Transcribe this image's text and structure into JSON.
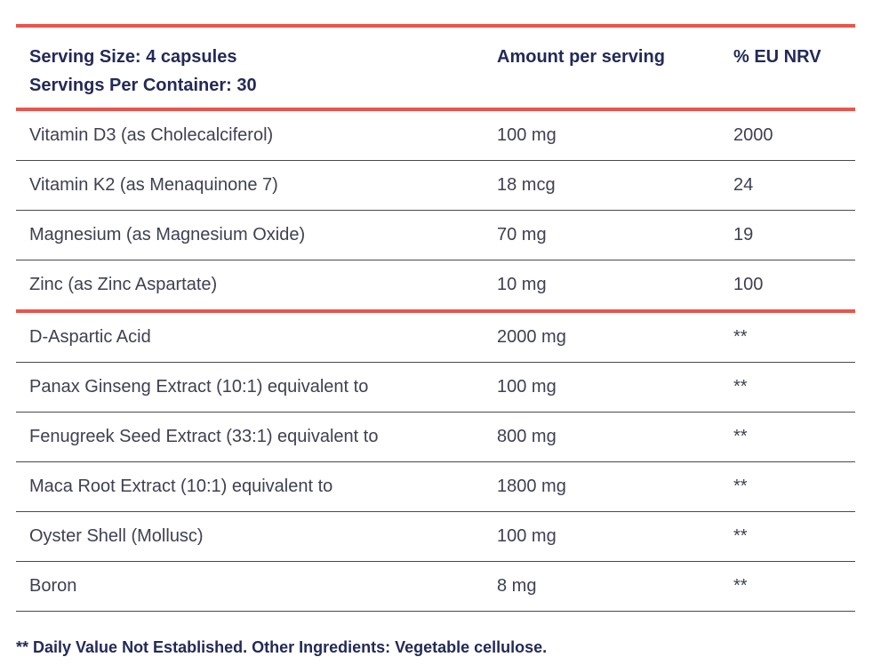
{
  "header": {
    "serving_size": "Serving Size: 4 capsules",
    "servings_per_container": "Servings Per Container: 30",
    "amount_label": "Amount per serving",
    "nrv_label": "% EU NRV"
  },
  "vitamins": [
    {
      "name": "Vitamin D3 (as Cholecalciferol)",
      "amount": "100 mg",
      "nrv": "2000"
    },
    {
      "name": "Vitamin K2 (as Menaquinone 7)",
      "amount": "18 mcg",
      "nrv": "24"
    },
    {
      "name": "Magnesium (as Magnesium Oxide)",
      "amount": "70 mg",
      "nrv": "19"
    },
    {
      "name": "Zinc (as Zinc Aspartate)",
      "amount": "10 mg",
      "nrv": "100"
    }
  ],
  "others": [
    {
      "name": "D-Aspartic Acid",
      "amount": "2000 mg",
      "nrv": "**"
    },
    {
      "name": "Panax Ginseng Extract (10:1) equivalent to",
      "amount": "100 mg",
      "nrv": "**"
    },
    {
      "name": "Fenugreek Seed Extract (33:1) equivalent to",
      "amount": "800 mg",
      "nrv": "**"
    },
    {
      "name": "Maca Root Extract (10:1) equivalent to",
      "amount": "1800 mg",
      "nrv": "**"
    },
    {
      "name": "Oyster Shell (Mollusc)",
      "amount": "100 mg",
      "nrv": "**"
    },
    {
      "name": "Boron",
      "amount": "8 mg",
      "nrv": "**"
    }
  ],
  "footnote": "** Daily Value Not Established. Other Ingredients: Vegetable cellulose.",
  "colors": {
    "accent_rule": "#e8554b",
    "header_text": "#232a58",
    "body_text": "#3f4052"
  }
}
